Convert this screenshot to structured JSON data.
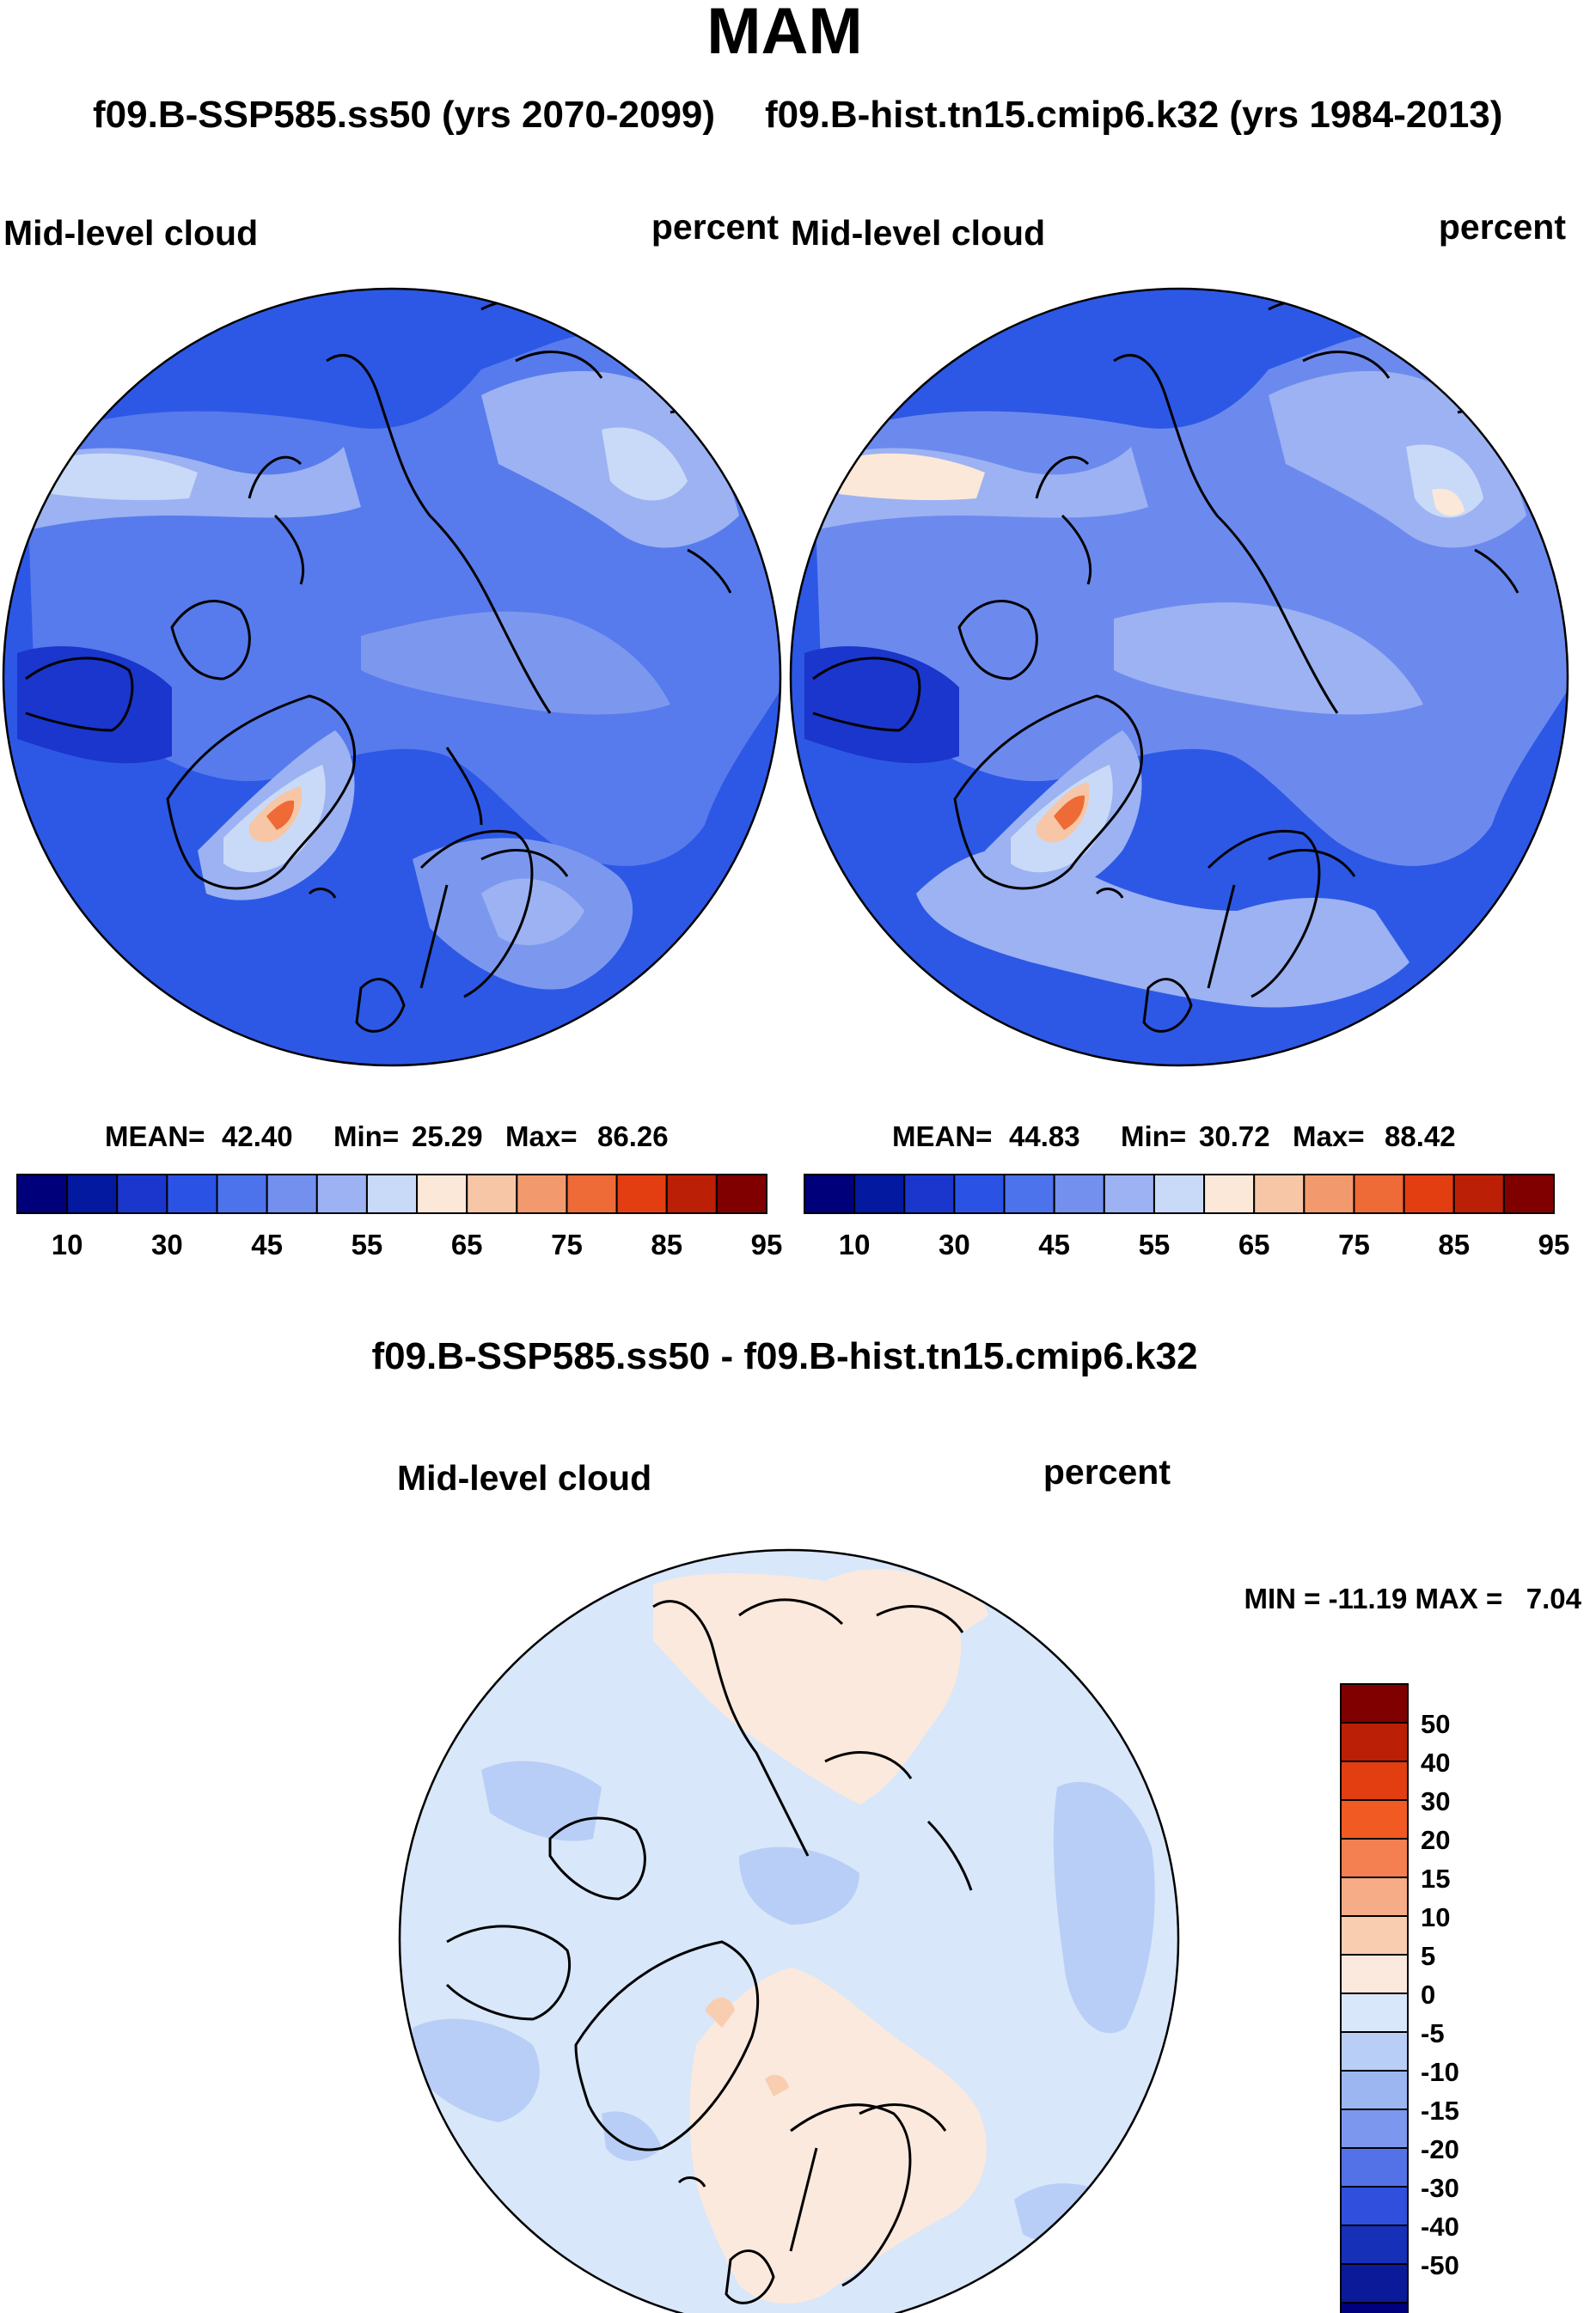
{
  "title": "MAM",
  "panel_a": {
    "case": "f09.B-SSP585.ss50 (yrs 2070-2099)",
    "variable": "Mid-level cloud",
    "units": "percent",
    "stats": {
      "mean_label": "MEAN=",
      "mean": "42.40",
      "min_label": "Min=",
      "min": "25.29",
      "max_label": "Max=",
      "max": "86.26"
    }
  },
  "panel_b": {
    "case": "f09.B-hist.tn15.cmip6.k32 (yrs 1984-2013)",
    "variable": "Mid-level cloud",
    "units": "percent",
    "stats": {
      "mean_label": "MEAN=",
      "mean": "44.83",
      "min_label": "Min=",
      "min": "30.72",
      "max_label": "Max=",
      "max": "88.42"
    }
  },
  "abs_colorbar": {
    "colors": [
      "#00007a",
      "#0319a0",
      "#1a36cc",
      "#2a53e6",
      "#4c72ec",
      "#7390ee",
      "#9cb2f2",
      "#c9daf8",
      "#fbe8d9",
      "#f7c6a6",
      "#f29a6e",
      "#ee6a36",
      "#e23e12",
      "#bb1f06",
      "#800000"
    ],
    "labels": [
      "10",
      "30",
      "45",
      "55",
      "65",
      "75",
      "85",
      "95"
    ]
  },
  "difference": {
    "title": "f09.B-SSP585.ss50 - f09.B-hist.tn15.cmip6.k32",
    "variable": "Mid-level cloud",
    "units": "percent",
    "minmax_label": "MIN = -11.19 MAX =   7.04"
  },
  "diff_colorbar": {
    "colors": [
      "#800000",
      "#bb1f06",
      "#e23e12",
      "#f15a22",
      "#f47f50",
      "#f6ac86",
      "#f9cdb0",
      "#fce9dd",
      "#d8e7fa",
      "#b8cef6",
      "#9cb6f2",
      "#7c98ee",
      "#5472e8",
      "#2f4fdc",
      "#1630b8",
      "#0a1a99",
      "#00007a"
    ],
    "labels": [
      "50",
      "40",
      "30",
      "20",
      "15",
      "10",
      "5",
      "0",
      "-5",
      "-10",
      "-15",
      "-20",
      "-30",
      "-40",
      "-50"
    ]
  },
  "chart_data": [
    {
      "type": "heatmap",
      "projection": "north polar stereographic",
      "title": "Mid-level cloud",
      "subtitle": "f09.B-SSP585.ss50 (yrs 2070-2099)",
      "units": "percent",
      "mean": 42.4,
      "min": 25.29,
      "max": 86.26,
      "colorbar_levels": [
        10,
        30,
        45,
        55,
        65,
        75,
        85,
        95
      ]
    },
    {
      "type": "heatmap",
      "projection": "north polar stereographic",
      "title": "Mid-level cloud",
      "subtitle": "f09.B-hist.tn15.cmip6.k32 (yrs 1984-2013)",
      "units": "percent",
      "mean": 44.83,
      "min": 30.72,
      "max": 88.42,
      "colorbar_levels": [
        10,
        30,
        45,
        55,
        65,
        75,
        85,
        95
      ]
    },
    {
      "type": "heatmap",
      "projection": "north polar stereographic",
      "title": "f09.B-SSP585.ss50 - f09.B-hist.tn15.cmip6.k32",
      "variable": "Mid-level cloud",
      "units": "percent",
      "min": -11.19,
      "max": 7.04,
      "colorbar_levels": [
        50,
        40,
        30,
        20,
        15,
        10,
        5,
        0,
        -5,
        -10,
        -15,
        -20,
        -30,
        -40,
        -50
      ]
    }
  ]
}
